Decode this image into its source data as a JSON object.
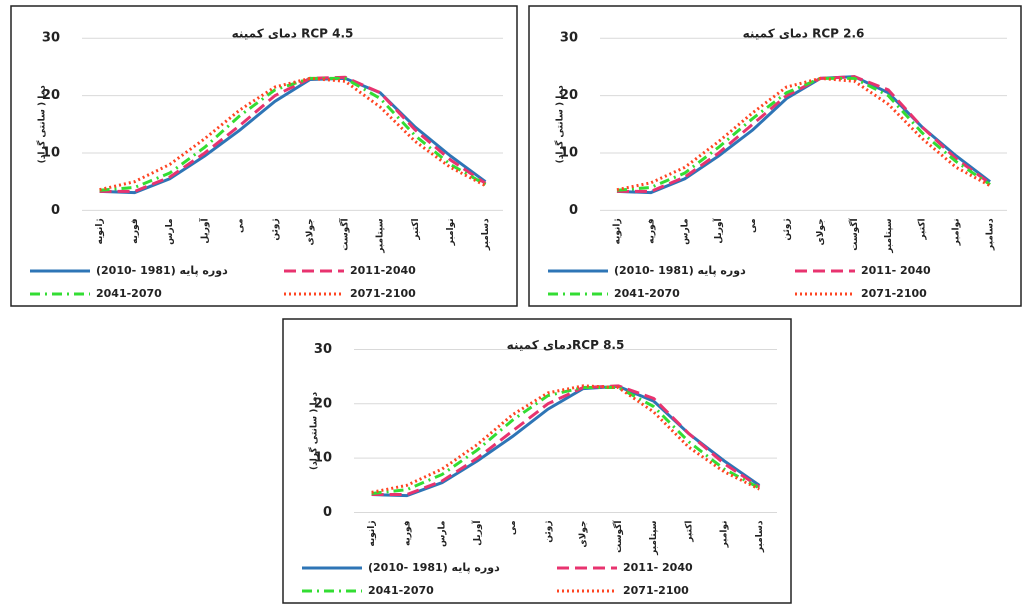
{
  "chart_data": [
    {
      "type": "line",
      "title": "دمای کمینه RCP 4.5",
      "y_label": "دما ( سانتی گراد)",
      "categories": [
        "ژانویه",
        "فوریه",
        "مارس",
        "آوریل",
        "می",
        "ژوئن",
        "جولای",
        "آگوست",
        "سپتامبر",
        "اکتبر",
        "نوامبر",
        "دسامبر"
      ],
      "series": [
        {
          "name": "دوره پایه (1981 -2010)",
          "color": "#2e75b6",
          "style": "solid",
          "values": [
            3.3,
            3.1,
            5.5,
            9.5,
            14,
            19,
            22.8,
            23,
            20.5,
            14.5,
            9.5,
            5
          ]
        },
        {
          "name": "2011-2040",
          "color": "#e8336f",
          "style": "dash",
          "values": [
            3.3,
            3.3,
            5.8,
            10,
            14.8,
            20,
            23,
            23.2,
            20.5,
            14,
            8.8,
            4.7
          ]
        },
        {
          "name": "2041-2070",
          "color": "#33dd33",
          "style": "dashdot",
          "values": [
            3.5,
            4,
            6.5,
            11,
            16.5,
            21,
            23,
            23,
            19.5,
            13,
            8,
            4.5
          ]
        },
        {
          "name": "2071-2100",
          "color": "#ff4422",
          "style": "dot",
          "values": [
            3.6,
            5,
            8,
            12.5,
            17.5,
            21.5,
            23,
            22.5,
            18,
            12,
            7.5,
            4.3
          ]
        }
      ],
      "ylim": [
        0,
        30
      ],
      "yticks": [
        0,
        10,
        20,
        30
      ],
      "grid": true
    },
    {
      "type": "line",
      "title": "دمای کمینه RCP 2.6",
      "y_label": "دما ( سانتی گراد)",
      "categories": [
        "ژانویه",
        "فوریه",
        "مارس",
        "آوریل",
        "می",
        "ژوئن",
        "جولای",
        "آگوست",
        "سپتامبر",
        "اکتبر",
        "نوامبر",
        "دسامبر"
      ],
      "series": [
        {
          "name": "دوره پایه (1981 -2010)",
          "color": "#2e75b6",
          "style": "solid",
          "values": [
            3.3,
            3.1,
            5.5,
            9.5,
            14,
            19.5,
            23,
            23.3,
            20.5,
            14.5,
            9.5,
            5
          ]
        },
        {
          "name": "2011- 2040",
          "color": "#e8336f",
          "style": "dash",
          "values": [
            3.3,
            3.3,
            5.8,
            10,
            15,
            20,
            23,
            23.3,
            21,
            14.5,
            9,
            4.7
          ]
        },
        {
          "name": "2041-2070",
          "color": "#33dd33",
          "style": "dashdot",
          "values": [
            3.5,
            4,
            6.5,
            11,
            16,
            20.5,
            23,
            23,
            20,
            13.5,
            8.5,
            4.5
          ]
        },
        {
          "name": "2071-2100",
          "color": "#ff4422",
          "style": "dot",
          "values": [
            3.6,
            4.8,
            7.5,
            12,
            17,
            21.5,
            23,
            22.5,
            18.5,
            12.5,
            7.5,
            4.3
          ]
        }
      ],
      "ylim": [
        0,
        30
      ],
      "yticks": [
        0,
        10,
        20,
        30
      ],
      "grid": true
    },
    {
      "type": "line",
      "title": "دمای کمینهRCP 8.5",
      "y_label": "دما ( سانتی گراد)",
      "categories": [
        "ژانویه",
        "فوریه",
        "مارس",
        "آوریل",
        "می",
        "ژوئن",
        "جولای",
        "آگوست",
        "سپتامبر",
        "اکتبر",
        "نوامبر",
        "دسامبر"
      ],
      "series": [
        {
          "name": "دوره پایه (1981 -2010)",
          "color": "#2e75b6",
          "style": "solid",
          "values": [
            3.3,
            3.1,
            5.5,
            9.5,
            14,
            19,
            22.8,
            23.2,
            20.5,
            14.5,
            9.5,
            5
          ]
        },
        {
          "name": "2011- 2040",
          "color": "#e8336f",
          "style": "dash",
          "values": [
            3.3,
            3.3,
            5.8,
            10,
            15,
            20,
            23,
            23.3,
            21,
            14.5,
            9,
            4.7
          ]
        },
        {
          "name": "2041-2070",
          "color": "#33dd33",
          "style": "dashdot",
          "values": [
            3.5,
            4.2,
            7,
            11.5,
            17,
            21.5,
            23,
            23,
            19.5,
            13,
            8,
            4.5
          ]
        },
        {
          "name": "2071-2100",
          "color": "#ff4422",
          "style": "dot",
          "values": [
            3.7,
            5,
            8,
            12.5,
            18,
            22,
            23.3,
            23,
            18.5,
            12,
            7.5,
            4.3
          ]
        }
      ],
      "ylim": [
        0,
        30
      ],
      "yticks": [
        0,
        10,
        20,
        30
      ],
      "grid": true
    }
  ]
}
